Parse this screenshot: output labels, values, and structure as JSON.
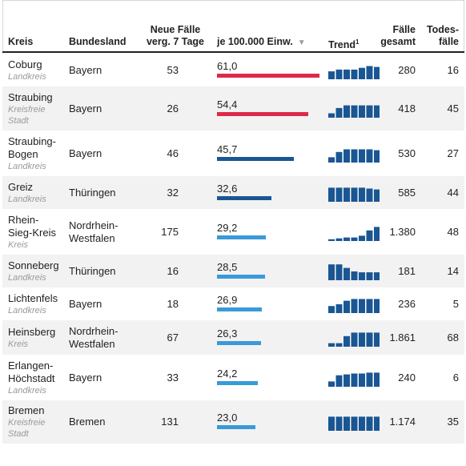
{
  "colors": {
    "high": "#e0284a",
    "mid": "#1a5693",
    "low": "#3a9ad9",
    "spark": "#1a5693"
  },
  "headers": {
    "kreis": "Kreis",
    "bundesland": "Bundesland",
    "neue_faelle_line1": "Neue Fälle",
    "neue_faelle_line2": "verg. 7 Tage",
    "je100k": "je 100.000 Einw.",
    "trend": "Trend",
    "trend_sup": "1",
    "faelle_line1": "Fälle",
    "faelle_line2": "gesamt",
    "tode_line1": "Todes-",
    "tode_line2": "fälle"
  },
  "chart_data": {
    "type": "table",
    "columns": [
      "Kreis",
      "Bundesland",
      "Neue Fälle verg. 7 Tage",
      "je 100.000 Einw.",
      "Trend",
      "Fälle gesamt",
      "Todesfälle"
    ],
    "rate_scale_max": 61.0,
    "rows": [
      {
        "kreis": [
          "Coburg"
        ],
        "typ": [
          "Landkreis"
        ],
        "bundesland": [
          "Bayern"
        ],
        "neue": "53",
        "rate": 61.0,
        "rate_label": "61,0",
        "level": "high",
        "trend": [
          0.45,
          0.55,
          0.55,
          0.55,
          0.65,
          0.75,
          0.7
        ],
        "gesamt": "280",
        "tode": "16"
      },
      {
        "kreis": [
          "Straubing"
        ],
        "typ": [
          "Kreisfreie",
          "Stadt"
        ],
        "bundesland": [
          "Bayern"
        ],
        "neue": "26",
        "rate": 54.4,
        "rate_label": "54,4",
        "level": "high",
        "trend": [
          0.25,
          0.55,
          0.7,
          0.7,
          0.7,
          0.7,
          0.7
        ],
        "gesamt": "418",
        "tode": "45"
      },
      {
        "kreis": [
          "Straubing-",
          "Bogen"
        ],
        "typ": [
          "Landkreis"
        ],
        "bundesland": [
          "Bayern"
        ],
        "neue": "46",
        "rate": 45.7,
        "rate_label": "45,7",
        "level": "mid",
        "trend": [
          0.3,
          0.6,
          0.75,
          0.75,
          0.75,
          0.75,
          0.7
        ],
        "gesamt": "530",
        "tode": "27"
      },
      {
        "kreis": [
          "Greiz"
        ],
        "typ": [
          "Landkreis"
        ],
        "bundesland": [
          "Thüringen"
        ],
        "neue": "32",
        "rate": 32.6,
        "rate_label": "32,6",
        "level": "mid",
        "trend": [
          0.8,
          0.8,
          0.8,
          0.8,
          0.8,
          0.75,
          0.7
        ],
        "gesamt": "585",
        "tode": "44"
      },
      {
        "kreis": [
          "Rhein-",
          "Sieg-Kreis"
        ],
        "typ": [
          "Kreis"
        ],
        "bundesland": [
          "Nordrhein-",
          "Westfalen"
        ],
        "neue": "175",
        "rate": 29.2,
        "rate_label": "29,2",
        "level": "low",
        "trend": [
          0.1,
          0.15,
          0.2,
          0.2,
          0.3,
          0.6,
          0.8
        ],
        "gesamt": "1.380",
        "tode": "48"
      },
      {
        "kreis": [
          "Sonneberg"
        ],
        "typ": [
          "Landkreis"
        ],
        "bundesland": [
          "Thüringen"
        ],
        "neue": "16",
        "rate": 28.5,
        "rate_label": "28,5",
        "level": "low",
        "trend": [
          0.9,
          0.9,
          0.7,
          0.5,
          0.45,
          0.45,
          0.45
        ],
        "gesamt": "181",
        "tode": "14"
      },
      {
        "kreis": [
          "Lichtenfels"
        ],
        "typ": [
          "Landkreis"
        ],
        "bundesland": [
          "Bayern"
        ],
        "neue": "18",
        "rate": 26.9,
        "rate_label": "26,9",
        "level": "low",
        "trend": [
          0.4,
          0.5,
          0.7,
          0.8,
          0.8,
          0.8,
          0.8
        ],
        "gesamt": "236",
        "tode": "5"
      },
      {
        "kreis": [
          "Heinsberg"
        ],
        "typ": [
          "Kreis"
        ],
        "bundesland": [
          "Nordrhein-",
          "Westfalen"
        ],
        "neue": "67",
        "rate": 26.3,
        "rate_label": "26,3",
        "level": "low",
        "trend": [
          0.2,
          0.2,
          0.6,
          0.8,
          0.8,
          0.8,
          0.8
        ],
        "gesamt": "1.861",
        "tode": "68"
      },
      {
        "kreis": [
          "Erlangen-",
          "Höchstadt"
        ],
        "typ": [
          "Landkreis"
        ],
        "bundesland": [
          "Bayern"
        ],
        "neue": "33",
        "rate": 24.2,
        "rate_label": "24,2",
        "level": "low",
        "trend": [
          0.3,
          0.65,
          0.7,
          0.75,
          0.75,
          0.8,
          0.8
        ],
        "gesamt": "240",
        "tode": "6"
      },
      {
        "kreis": [
          "Bremen"
        ],
        "typ": [
          "Kreisfreie",
          "Stadt"
        ],
        "bundesland": [
          "Bremen"
        ],
        "neue": "131",
        "rate": 23.0,
        "rate_label": "23,0",
        "level": "low",
        "trend": [
          0.8,
          0.8,
          0.8,
          0.8,
          0.8,
          0.8,
          0.8
        ],
        "gesamt": "1.174",
        "tode": "35"
      }
    ]
  }
}
